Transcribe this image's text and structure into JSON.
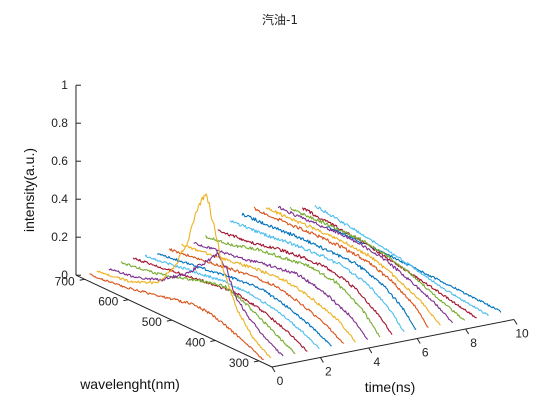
{
  "chart_data": {
    "type": "line",
    "subtype": "3d-waterfall",
    "title": "汽油-1",
    "xlabel": "time(ns)",
    "ylabel": "wavelenght(nm)",
    "zlabel": "intensity(a.u.)",
    "xlim": [
      0,
      10
    ],
    "ylim": [
      270,
      720
    ],
    "zlim": [
      0,
      1
    ],
    "xticks": [
      "0",
      "2",
      "4",
      "6",
      "8",
      "10"
    ],
    "yticks": [
      "300",
      "400",
      "500",
      "600",
      "700"
    ],
    "zticks": [
      "0",
      "0.2",
      "0.4",
      "0.6",
      "0.8",
      "1"
    ],
    "grid": false,
    "series": [
      {
        "time": 10.0,
        "color": "#0072bd",
        "wavelength": [
          300,
          420,
          560,
          700
        ],
        "intensity": [
          0.01,
          0.02,
          0.03,
          0.03
        ]
      },
      {
        "time": 9.5,
        "color": "#4dbeee",
        "wavelength": [
          300,
          400,
          500,
          600,
          700
        ],
        "intensity": [
          0.0,
          0.03,
          0.08,
          0.12,
          0.15
        ]
      },
      {
        "time": 9.0,
        "color": "#a2142f",
        "wavelength": [
          300,
          380,
          470,
          560,
          650,
          700
        ],
        "intensity": [
          0.0,
          0.04,
          0.08,
          0.12,
          0.14,
          0.15
        ]
      },
      {
        "time": 8.5,
        "color": "#77ac30",
        "wavelength": [
          300,
          360,
          420,
          480,
          540,
          600,
          680,
          700
        ],
        "intensity": [
          0.0,
          0.05,
          0.11,
          0.15,
          0.17,
          0.17,
          0.16,
          0.16
        ]
      },
      {
        "time": 8.0,
        "color": "#7e2f8e",
        "wavelength": [
          300,
          340,
          400,
          460,
          520,
          580,
          640,
          700
        ],
        "intensity": [
          0.0,
          0.06,
          0.12,
          0.17,
          0.19,
          0.19,
          0.18,
          0.18
        ]
      },
      {
        "time": 7.5,
        "color": "#edb120",
        "wavelength": [
          300,
          340,
          400,
          460,
          520,
          580,
          640,
          700
        ],
        "intensity": [
          0.0,
          0.07,
          0.14,
          0.19,
          0.2,
          0.2,
          0.19,
          0.19
        ]
      },
      {
        "time": 7.0,
        "color": "#d95319",
        "wavelength": [
          300,
          330,
          380,
          440,
          500,
          560,
          620,
          700
        ],
        "intensity": [
          0.0,
          0.08,
          0.15,
          0.2,
          0.21,
          0.21,
          0.2,
          0.2
        ]
      },
      {
        "time": 6.5,
        "color": "#0072bd",
        "wavelength": [
          300,
          330,
          380,
          440,
          500,
          560,
          620,
          700
        ],
        "intensity": [
          0.0,
          0.08,
          0.16,
          0.2,
          0.2,
          0.2,
          0.19,
          0.18
        ]
      },
      {
        "time": 6.0,
        "color": "#4dbeee",
        "wavelength": [
          300,
          330,
          380,
          440,
          500,
          560,
          620,
          700
        ],
        "intensity": [
          0.0,
          0.08,
          0.16,
          0.2,
          0.2,
          0.19,
          0.17,
          0.16
        ]
      },
      {
        "time": 5.5,
        "color": "#a2142f",
        "wavelength": [
          300,
          330,
          380,
          440,
          500,
          560,
          620,
          700
        ],
        "intensity": [
          0.0,
          0.07,
          0.15,
          0.19,
          0.19,
          0.17,
          0.14,
          0.12
        ]
      },
      {
        "time": 5.0,
        "color": "#77ac30",
        "wavelength": [
          300,
          340,
          400,
          460,
          520,
          580,
          640,
          700
        ],
        "intensity": [
          0.0,
          0.1,
          0.18,
          0.2,
          0.18,
          0.16,
          0.12,
          0.1
        ]
      },
      {
        "time": 4.5,
        "color": "#7e2f8e",
        "wavelength": [
          300,
          340,
          400,
          460,
          520,
          580,
          640,
          700
        ],
        "intensity": [
          0.0,
          0.08,
          0.14,
          0.17,
          0.15,
          0.12,
          0.1,
          0.08
        ]
      },
      {
        "time": 4.0,
        "color": "#edb120",
        "wavelength": [
          300,
          340,
          400,
          460,
          520,
          580,
          640,
          700
        ],
        "intensity": [
          0.0,
          0.07,
          0.12,
          0.15,
          0.14,
          0.12,
          0.1,
          0.08
        ]
      },
      {
        "time": 3.5,
        "color": "#d95319",
        "wavelength": [
          300,
          340,
          400,
          460,
          520,
          580,
          640,
          700
        ],
        "intensity": [
          0.0,
          0.06,
          0.11,
          0.14,
          0.13,
          0.11,
          0.09,
          0.07
        ]
      },
      {
        "time": 3.0,
        "color": "#0072bd",
        "wavelength": [
          300,
          340,
          400,
          460,
          520,
          580,
          640,
          700
        ],
        "intensity": [
          0.0,
          0.05,
          0.1,
          0.13,
          0.12,
          0.1,
          0.08,
          0.06
        ]
      },
      {
        "time": 2.5,
        "color": "#4dbeee",
        "wavelength": [
          300,
          340,
          400,
          460,
          520,
          580,
          640,
          700
        ],
        "intensity": [
          0.0,
          0.05,
          0.1,
          0.12,
          0.12,
          0.1,
          0.08,
          0.06
        ]
      },
      {
        "time": 2.0,
        "color": "#a2142f",
        "wavelength": [
          300,
          340,
          400,
          460,
          520,
          580,
          640,
          700
        ],
        "intensity": [
          0.0,
          0.05,
          0.1,
          0.13,
          0.12,
          0.1,
          0.08,
          0.06
        ]
      },
      {
        "time": 1.5,
        "color": "#77ac30",
        "wavelength": [
          300,
          340,
          380,
          420,
          460,
          500,
          560,
          620,
          700
        ],
        "intensity": [
          0.0,
          0.05,
          0.1,
          0.15,
          0.18,
          0.16,
          0.12,
          0.08,
          0.05
        ]
      },
      {
        "time": 1.0,
        "color": "#7e2f8e",
        "wavelength": [
          300,
          340,
          380,
          410,
          430,
          450,
          480,
          520,
          580,
          640,
          700
        ],
        "intensity": [
          0.0,
          0.05,
          0.12,
          0.2,
          0.32,
          0.38,
          0.3,
          0.2,
          0.1,
          0.05,
          0.03
        ]
      },
      {
        "time": 0.5,
        "color": "#edb120",
        "wavelength": [
          300,
          340,
          380,
          410,
          430,
          450,
          470,
          490,
          520,
          560,
          620,
          700
        ],
        "intensity": [
          0.0,
          0.06,
          0.18,
          0.35,
          0.55,
          0.72,
          0.6,
          0.42,
          0.25,
          0.12,
          0.06,
          0.03
        ]
      },
      {
        "time": 0.2,
        "color": "#d95319",
        "wavelength": [
          300,
          340,
          380,
          420,
          460,
          500,
          560,
          620,
          700
        ],
        "intensity": [
          0.0,
          0.04,
          0.08,
          0.11,
          0.12,
          0.1,
          0.07,
          0.04,
          0.02
        ]
      }
    ]
  }
}
